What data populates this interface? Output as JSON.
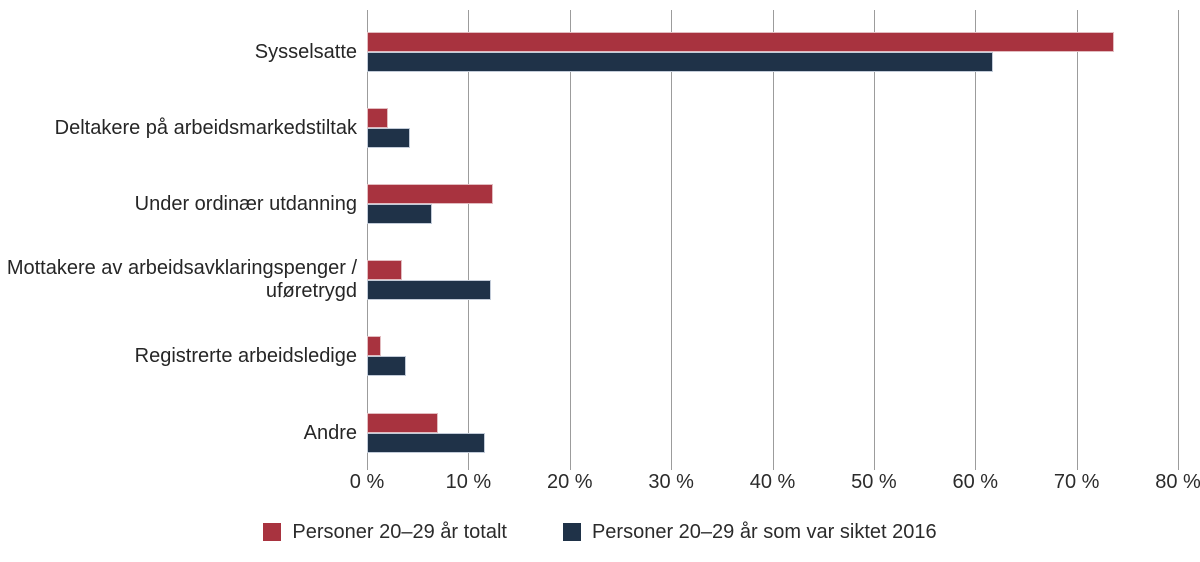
{
  "chart_data": {
    "type": "bar",
    "orientation": "horizontal",
    "title": "",
    "categories": [
      "Sysselsatte",
      "Deltakere på arbeidsmarkedstiltak",
      "Under ordinær utdanning",
      "Mottakere av arbeidsavklaringspenger / uføretrygd",
      "Registrerte arbeidsledige",
      "Andre"
    ],
    "series": [
      {
        "name": "Personer 20–29 år totalt",
        "color": "#a8333f",
        "values": [
          73.7,
          2.1,
          12.4,
          3.5,
          1.4,
          7.0
        ]
      },
      {
        "name": "Personer 20–29 år som var siktet 2016",
        "color": "#1f3248",
        "values": [
          61.8,
          4.2,
          6.4,
          12.2,
          3.8,
          11.6
        ]
      }
    ],
    "x_axis": {
      "min": 0,
      "max": 80,
      "tick_step": 10,
      "tick_labels": [
        "0 %",
        "10 %",
        "20 %",
        "30 %",
        "40 %",
        "50 %",
        "60 %",
        "70 %",
        "80 %"
      ]
    },
    "grid": true,
    "gridline_color": "#9c9c9c",
    "legend_position": "bottom"
  }
}
